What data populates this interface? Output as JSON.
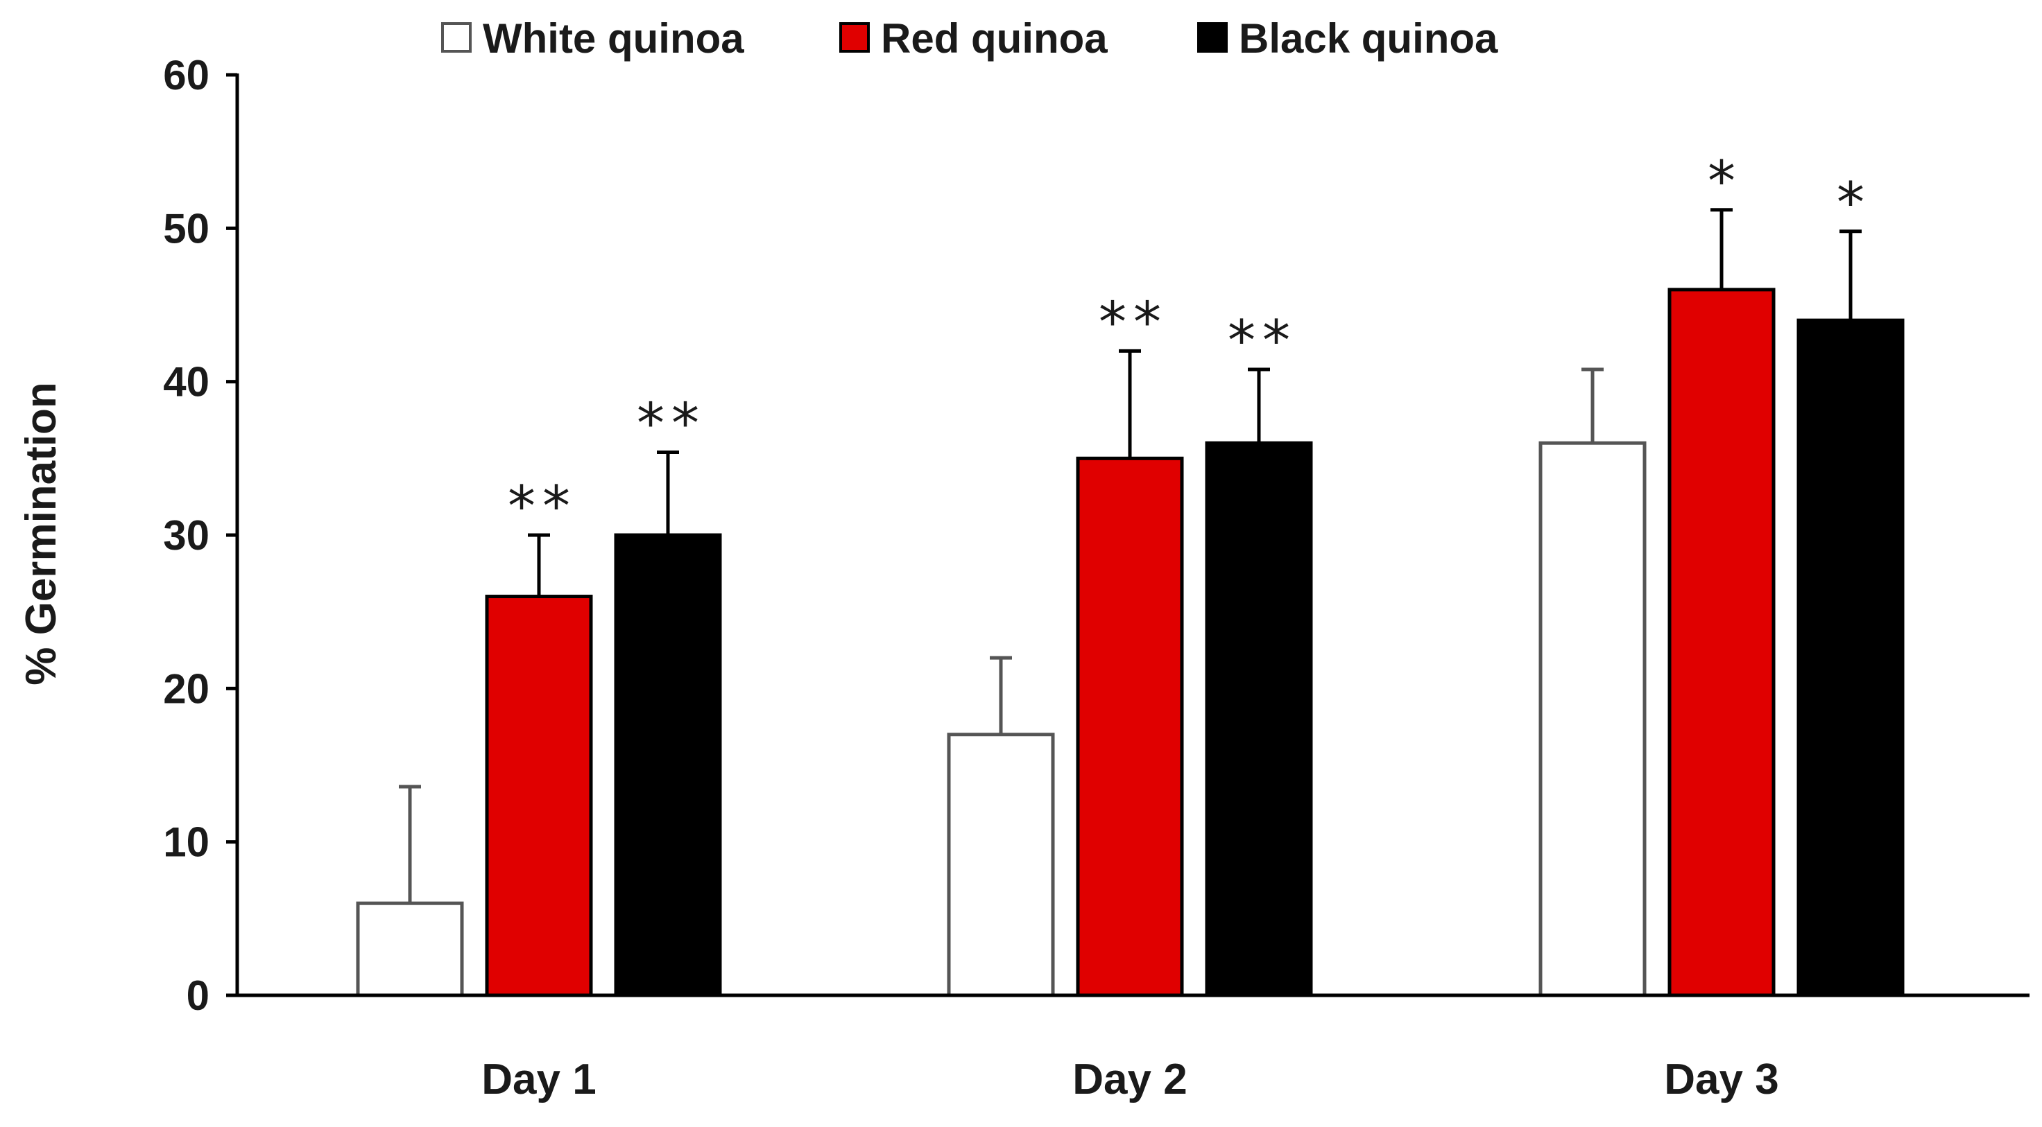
{
  "chart_data": {
    "type": "bar",
    "categories": [
      "Day 1",
      "Day 2",
      "Day 3"
    ],
    "series": [
      {
        "name": "White quinoa",
        "color": "#ffffff",
        "values": [
          6,
          17,
          36
        ],
        "errors": [
          7.6,
          5,
          4.8
        ],
        "significance": [
          "",
          "",
          ""
        ]
      },
      {
        "name": "Red quinoa",
        "color": "#e00000",
        "values": [
          26,
          35,
          46
        ],
        "errors": [
          4,
          7,
          5.2
        ],
        "significance": [
          "**",
          "**",
          "*"
        ]
      },
      {
        "name": "Black quinoa",
        "color": "#000000",
        "values": [
          30,
          36,
          44
        ],
        "errors": [
          5.4,
          4.8,
          5.8
        ],
        "significance": [
          "**",
          "**",
          "*"
        ]
      }
    ],
    "xlabel": "",
    "ylabel": "% Germination",
    "ylim": [
      0,
      60
    ],
    "yticks": [
      0,
      10,
      20,
      30,
      40,
      50,
      60
    ],
    "grid": false,
    "legend_position": "top"
  }
}
